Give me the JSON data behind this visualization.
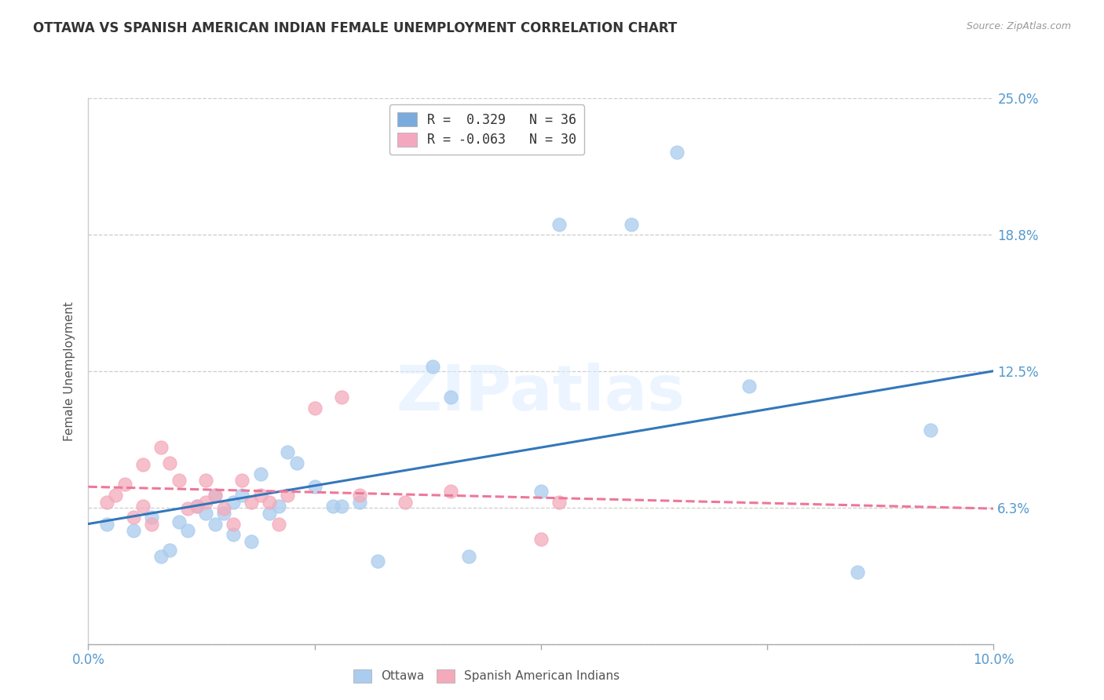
{
  "title": "OTTAWA VS SPANISH AMERICAN INDIAN FEMALE UNEMPLOYMENT CORRELATION CHART",
  "source": "Source: ZipAtlas.com",
  "xlabel": "",
  "ylabel": "Female Unemployment",
  "watermark": "ZIPatlas",
  "xmin": 0.0,
  "xmax": 0.1,
  "ymin": 0.0,
  "ymax": 0.25,
  "yticks": [
    0.0,
    0.0625,
    0.125,
    0.1875,
    0.25
  ],
  "ytick_labels": [
    "",
    "6.3%",
    "12.5%",
    "18.8%",
    "25.0%"
  ],
  "xticks": [
    0.0,
    0.025,
    0.05,
    0.075,
    0.1
  ],
  "xtick_labels": [
    "0.0%",
    "",
    "",
    "",
    "10.0%"
  ],
  "legend_r1": "R =  0.329   N = 36",
  "legend_r2": "R = -0.063   N = 30",
  "legend_color1": "#7AABDC",
  "legend_color2": "#F4A8C0",
  "trendline1_color": "#3377BB",
  "trendline2_color": "#EE7799",
  "ottawa_color": "#AACCEE",
  "sai_color": "#F4AABB",
  "background_color": "#FFFFFF",
  "grid_color": "#CCCCCC",
  "right_label_color": "#5599CC",
  "ottawa_x": [
    0.002,
    0.005,
    0.007,
    0.008,
    0.009,
    0.01,
    0.011,
    0.012,
    0.013,
    0.014,
    0.014,
    0.015,
    0.016,
    0.016,
    0.017,
    0.018,
    0.019,
    0.02,
    0.021,
    0.022,
    0.023,
    0.025,
    0.027,
    0.028,
    0.03,
    0.032,
    0.038,
    0.04,
    0.042,
    0.05,
    0.052,
    0.06,
    0.065,
    0.073,
    0.085,
    0.093
  ],
  "ottawa_y": [
    0.055,
    0.052,
    0.058,
    0.04,
    0.043,
    0.056,
    0.052,
    0.063,
    0.06,
    0.068,
    0.055,
    0.06,
    0.05,
    0.065,
    0.068,
    0.047,
    0.078,
    0.06,
    0.063,
    0.088,
    0.083,
    0.072,
    0.063,
    0.063,
    0.065,
    0.038,
    0.127,
    0.113,
    0.04,
    0.07,
    0.192,
    0.192,
    0.225,
    0.118,
    0.033,
    0.098
  ],
  "sai_x": [
    0.002,
    0.003,
    0.004,
    0.005,
    0.006,
    0.006,
    0.007,
    0.008,
    0.009,
    0.01,
    0.011,
    0.012,
    0.013,
    0.013,
    0.014,
    0.015,
    0.016,
    0.017,
    0.018,
    0.019,
    0.02,
    0.021,
    0.022,
    0.025,
    0.028,
    0.03,
    0.035,
    0.04,
    0.05,
    0.052
  ],
  "sai_y": [
    0.065,
    0.068,
    0.073,
    0.058,
    0.063,
    0.082,
    0.055,
    0.09,
    0.083,
    0.075,
    0.062,
    0.063,
    0.065,
    0.075,
    0.068,
    0.062,
    0.055,
    0.075,
    0.065,
    0.068,
    0.065,
    0.055,
    0.068,
    0.108,
    0.113,
    0.068,
    0.065,
    0.07,
    0.048,
    0.065
  ],
  "trendline1_x": [
    0.0,
    0.1
  ],
  "trendline1_y": [
    0.055,
    0.125
  ],
  "trendline2_x": [
    0.0,
    0.1
  ],
  "trendline2_y": [
    0.072,
    0.062
  ]
}
